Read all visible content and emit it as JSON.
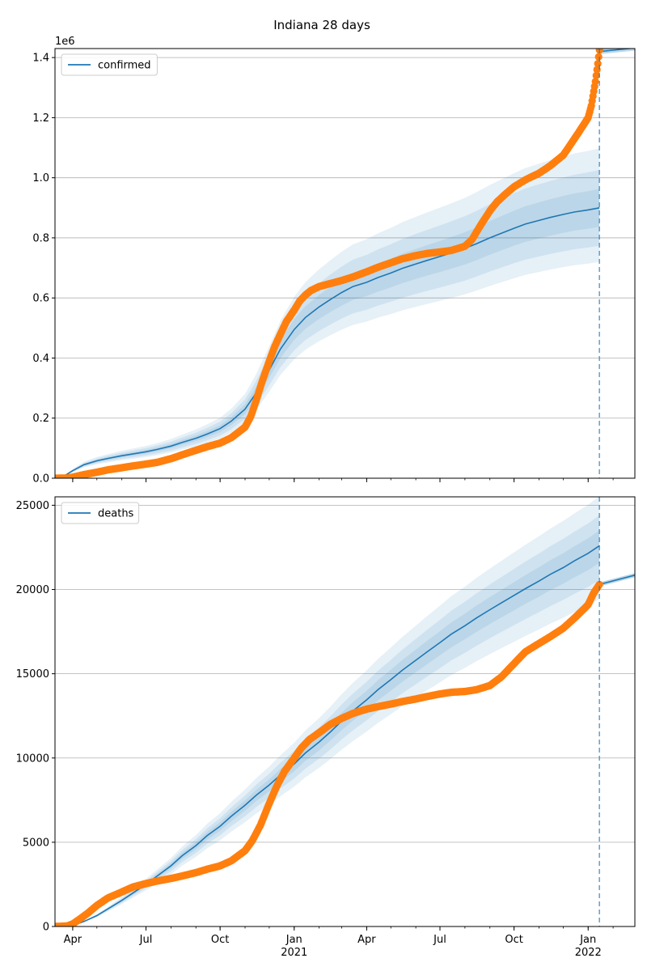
{
  "figure": {
    "title": "Indiana 28 days"
  },
  "colors": {
    "model": "#1f77b4",
    "observed": "#ff7f0e",
    "band": "#1f77b4",
    "grid": "#b0b0b0",
    "vline": "#1f77b4"
  },
  "x_axis": {
    "tick_labels": [
      {
        "date": "2020-04-01",
        "label": "Apr",
        "sub": ""
      },
      {
        "date": "2020-07-01",
        "label": "Jul",
        "sub": ""
      },
      {
        "date": "2020-10-01",
        "label": "Oct",
        "sub": ""
      },
      {
        "date": "2021-01-01",
        "label": "Jan",
        "sub": "2021"
      },
      {
        "date": "2021-04-01",
        "label": "Apr",
        "sub": ""
      },
      {
        "date": "2021-07-01",
        "label": "Jul",
        "sub": ""
      },
      {
        "date": "2021-10-01",
        "label": "Oct",
        "sub": ""
      },
      {
        "date": "2022-01-01",
        "label": "Jan",
        "sub": "2022"
      }
    ],
    "range": [
      "2020-03-10",
      "2022-02-28"
    ],
    "forecast_line_date": "2022-01-15"
  },
  "chart_data": [
    {
      "type": "line",
      "legend": "confirmed",
      "legend_placement": "top-left",
      "y_offset_label": "1e6",
      "ylim": [
        0,
        1430000
      ],
      "y_ticks": [
        {
          "value": 0,
          "label": "0.0"
        },
        {
          "value": 200000,
          "label": "0.2"
        },
        {
          "value": 400000,
          "label": "0.4"
        },
        {
          "value": 600000,
          "label": "0.6"
        },
        {
          "value": 800000,
          "label": "0.8"
        },
        {
          "value": 1000000,
          "label": "1.0"
        },
        {
          "value": 1200000,
          "label": "1.2"
        },
        {
          "value": 1400000,
          "label": "1.4"
        }
      ],
      "grid": true,
      "model": {
        "x": [
          "2020-03-10",
          "2020-03-20",
          "2020-04-01",
          "2020-04-15",
          "2020-05-01",
          "2020-05-15",
          "2020-06-01",
          "2020-06-15",
          "2020-07-01",
          "2020-07-15",
          "2020-08-01",
          "2020-08-15",
          "2020-09-01",
          "2020-09-15",
          "2020-10-01",
          "2020-10-15",
          "2020-11-01",
          "2020-11-15",
          "2020-12-01",
          "2020-12-15",
          "2021-01-01",
          "2021-01-15",
          "2021-02-01",
          "2021-02-15",
          "2021-03-01",
          "2021-03-15",
          "2021-04-01",
          "2021-04-15",
          "2021-05-01",
          "2021-05-15",
          "2021-06-01",
          "2021-06-15",
          "2021-07-01",
          "2021-07-15",
          "2021-08-01",
          "2021-08-15",
          "2021-09-01",
          "2021-09-15",
          "2021-10-01",
          "2021-10-15",
          "2021-11-01",
          "2021-11-15",
          "2021-12-01",
          "2021-12-15",
          "2022-01-01",
          "2022-01-15"
        ],
        "y": [
          0,
          5000,
          25000,
          45000,
          58000,
          66000,
          75000,
          81000,
          88000,
          96000,
          107000,
          119000,
          133000,
          147000,
          165000,
          190000,
          230000,
          285000,
          360000,
          430000,
          495000,
          535000,
          570000,
          595000,
          618000,
          638000,
          652000,
          668000,
          683000,
          698000,
          713000,
          725000,
          738000,
          750000,
          765000,
          780000,
          800000,
          815000,
          832000,
          846000,
          858000,
          868000,
          878000,
          886000,
          893000,
          900000
        ],
        "bands": [
          {
            "lower_ratio": 0.8,
            "upper_ratio": 1.22,
            "opacity": 0.11
          },
          {
            "lower_ratio": 0.86,
            "upper_ratio": 1.14,
            "opacity": 0.11
          },
          {
            "lower_ratio": 0.93,
            "upper_ratio": 1.07,
            "opacity": 0.11
          }
        ]
      },
      "tail": {
        "x": [
          "2022-01-15",
          "2022-02-28"
        ],
        "y": [
          1420000,
          1432000
        ]
      },
      "observed": {
        "x": [
          "2020-03-10",
          "2020-03-25",
          "2020-04-01",
          "2020-04-15",
          "2020-05-01",
          "2020-05-15",
          "2020-06-01",
          "2020-06-15",
          "2020-07-01",
          "2020-07-15",
          "2020-08-01",
          "2020-08-15",
          "2020-09-01",
          "2020-09-15",
          "2020-10-01",
          "2020-10-15",
          "2020-11-01",
          "2020-11-08",
          "2020-11-15",
          "2020-11-22",
          "2020-12-01",
          "2020-12-08",
          "2020-12-15",
          "2020-12-22",
          "2021-01-01",
          "2021-01-08",
          "2021-01-15",
          "2021-01-22",
          "2021-02-01",
          "2021-02-15",
          "2021-03-01",
          "2021-03-15",
          "2021-04-01",
          "2021-04-15",
          "2021-05-01",
          "2021-05-15",
          "2021-06-01",
          "2021-06-15",
          "2021-07-01",
          "2021-07-15",
          "2021-08-01",
          "2021-08-10",
          "2021-08-20",
          "2021-09-01",
          "2021-09-10",
          "2021-09-20",
          "2021-10-01",
          "2021-10-15",
          "2021-11-01",
          "2021-11-15",
          "2021-12-01",
          "2021-12-10",
          "2021-12-20",
          "2022-01-01",
          "2022-01-05",
          "2022-01-10",
          "2022-01-13",
          "2022-01-15"
        ],
        "y": [
          0,
          500,
          3500,
          12000,
          20000,
          28000,
          35000,
          41000,
          47000,
          53000,
          65000,
          78000,
          93000,
          105000,
          117000,
          135000,
          170000,
          205000,
          260000,
          320000,
          390000,
          440000,
          480000,
          520000,
          560000,
          590000,
          610000,
          625000,
          638000,
          648000,
          658000,
          670000,
          687000,
          702000,
          717000,
          730000,
          741000,
          748000,
          753000,
          758000,
          772000,
          795000,
          840000,
          890000,
          920000,
          945000,
          970000,
          993000,
          1015000,
          1040000,
          1075000,
          1110000,
          1150000,
          1200000,
          1240000,
          1320000,
          1380000,
          1425000
        ]
      }
    },
    {
      "type": "line",
      "legend": "deaths",
      "legend_placement": "top-left",
      "y_offset_label": "",
      "ylim": [
        0,
        25500
      ],
      "y_ticks": [
        {
          "value": 0,
          "label": "0"
        },
        {
          "value": 5000,
          "label": "5000"
        },
        {
          "value": 10000,
          "label": "10000"
        },
        {
          "value": 15000,
          "label": "15000"
        },
        {
          "value": 20000,
          "label": "20000"
        },
        {
          "value": 25000,
          "label": "25000"
        }
      ],
      "grid": true,
      "model": {
        "x": [
          "2020-03-10",
          "2020-04-01",
          "2020-04-15",
          "2020-05-01",
          "2020-05-15",
          "2020-06-01",
          "2020-06-15",
          "2020-07-01",
          "2020-07-15",
          "2020-08-01",
          "2020-08-15",
          "2020-09-01",
          "2020-09-15",
          "2020-10-01",
          "2020-10-15",
          "2020-11-01",
          "2020-11-15",
          "2020-12-01",
          "2020-12-15",
          "2021-01-01",
          "2021-01-15",
          "2021-02-01",
          "2021-02-15",
          "2021-03-01",
          "2021-03-15",
          "2021-04-01",
          "2021-04-15",
          "2021-05-01",
          "2021-05-15",
          "2021-06-01",
          "2021-06-15",
          "2021-07-01",
          "2021-07-15",
          "2021-08-01",
          "2021-08-15",
          "2021-09-01",
          "2021-09-15",
          "2021-10-01",
          "2021-10-15",
          "2021-11-01",
          "2021-11-15",
          "2021-12-01",
          "2021-12-15",
          "2022-01-01",
          "2022-01-15"
        ],
        "y": [
          0,
          50,
          300,
          650,
          1050,
          1550,
          2000,
          2500,
          3000,
          3600,
          4200,
          4800,
          5400,
          5950,
          6550,
          7200,
          7800,
          8400,
          9000,
          9650,
          10300,
          10950,
          11550,
          12200,
          12800,
          13450,
          14050,
          14650,
          15200,
          15800,
          16300,
          16850,
          17350,
          17850,
          18300,
          18800,
          19200,
          19650,
          20050,
          20500,
          20900,
          21300,
          21700,
          22150,
          22600
        ],
        "bands": [
          {
            "lower_ratio": 0.86,
            "upper_ratio": 1.13,
            "opacity": 0.11
          },
          {
            "lower_ratio": 0.91,
            "upper_ratio": 1.08,
            "opacity": 0.11
          },
          {
            "lower_ratio": 0.955,
            "upper_ratio": 1.04,
            "opacity": 0.11
          }
        ]
      },
      "tail": {
        "x": [
          "2022-01-15",
          "2022-02-28"
        ],
        "y": [
          20300,
          20850
        ]
      },
      "observed": {
        "x": [
          "2020-03-10",
          "2020-03-25",
          "2020-04-01",
          "2020-04-10",
          "2020-04-20",
          "2020-05-01",
          "2020-05-15",
          "2020-06-01",
          "2020-06-15",
          "2020-07-01",
          "2020-07-15",
          "2020-08-01",
          "2020-08-15",
          "2020-09-01",
          "2020-09-15",
          "2020-10-01",
          "2020-10-15",
          "2020-11-01",
          "2020-11-10",
          "2020-11-20",
          "2020-12-01",
          "2020-12-10",
          "2020-12-20",
          "2021-01-01",
          "2021-01-10",
          "2021-01-20",
          "2021-02-01",
          "2021-02-15",
          "2021-03-01",
          "2021-03-15",
          "2021-04-01",
          "2021-04-15",
          "2021-05-01",
          "2021-05-15",
          "2021-06-01",
          "2021-06-15",
          "2021-07-01",
          "2021-07-15",
          "2021-08-01",
          "2021-08-15",
          "2021-09-01",
          "2021-09-15",
          "2021-10-01",
          "2021-10-15",
          "2021-11-01",
          "2021-11-15",
          "2021-12-01",
          "2021-12-15",
          "2022-01-01",
          "2022-01-08",
          "2022-01-15"
        ],
        "y": [
          0,
          30,
          150,
          450,
          800,
          1250,
          1700,
          2050,
          2350,
          2550,
          2700,
          2850,
          3000,
          3200,
          3400,
          3600,
          3900,
          4500,
          5100,
          6000,
          7300,
          8300,
          9200,
          10000,
          10600,
          11100,
          11500,
          12000,
          12350,
          12650,
          12900,
          13050,
          13200,
          13350,
          13500,
          13650,
          13800,
          13900,
          13950,
          14050,
          14300,
          14800,
          15600,
          16300,
          16800,
          17200,
          17700,
          18300,
          19100,
          19800,
          20300
        ]
      }
    }
  ]
}
